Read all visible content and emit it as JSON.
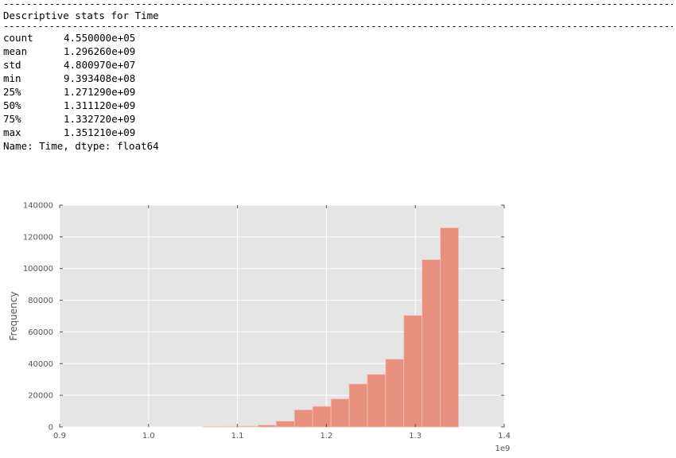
{
  "console": {
    "rule": "--------------------------------------------------------------------------------------------------------------------------------",
    "heading": "Descriptive stats for Time",
    "stats": [
      {
        "key": "count",
        "value": "4.550000e+05"
      },
      {
        "key": "mean",
        "value": "1.296260e+09"
      },
      {
        "key": "std",
        "value": "4.800970e+07"
      },
      {
        "key": "min",
        "value": "9.393408e+08"
      },
      {
        "key": "25%",
        "value": "1.271290e+09"
      },
      {
        "key": "50%",
        "value": "1.311120e+09"
      },
      {
        "key": "75%",
        "value": "1.332720e+09"
      },
      {
        "key": "max",
        "value": "1.351210e+09"
      }
    ],
    "footer": "Name: Time, dtype: float64"
  },
  "chart_data": {
    "type": "bar",
    "title": "",
    "xlabel": "",
    "ylabel": "Frequency",
    "x_offset_label": "1e9",
    "xlim": [
      0.9,
      1.4
    ],
    "ylim": [
      0,
      140000
    ],
    "xticks": [
      "0.9",
      "1.0",
      "1.1",
      "1.2",
      "1.3",
      "1.4"
    ],
    "yticks": [
      "0",
      "20000",
      "40000",
      "60000",
      "80000",
      "100000",
      "120000",
      "140000"
    ],
    "grid": true,
    "bar_color": "#e8907e",
    "background": "#e5e5e5",
    "bins": [
      {
        "x0": 1.0616,
        "x1": 1.0821,
        "value": 300
      },
      {
        "x0": 1.0821,
        "x1": 1.1026,
        "value": 400
      },
      {
        "x0": 1.1026,
        "x1": 1.1231,
        "value": 500
      },
      {
        "x0": 1.1231,
        "x1": 1.1436,
        "value": 1200
      },
      {
        "x0": 1.1436,
        "x1": 1.1641,
        "value": 3700
      },
      {
        "x0": 1.1641,
        "x1": 1.1846,
        "value": 10800
      },
      {
        "x0": 1.1846,
        "x1": 1.2051,
        "value": 13000
      },
      {
        "x0": 1.2051,
        "x1": 1.2256,
        "value": 17700
      },
      {
        "x0": 1.2256,
        "x1": 1.2461,
        "value": 27200
      },
      {
        "x0": 1.2461,
        "x1": 1.2666,
        "value": 33200
      },
      {
        "x0": 1.2666,
        "x1": 1.2871,
        "value": 42800
      },
      {
        "x0": 1.2871,
        "x1": 1.3076,
        "value": 70400
      },
      {
        "x0": 1.3076,
        "x1": 1.3281,
        "value": 105600
      },
      {
        "x0": 1.3281,
        "x1": 1.3486,
        "value": 125700
      }
    ]
  }
}
